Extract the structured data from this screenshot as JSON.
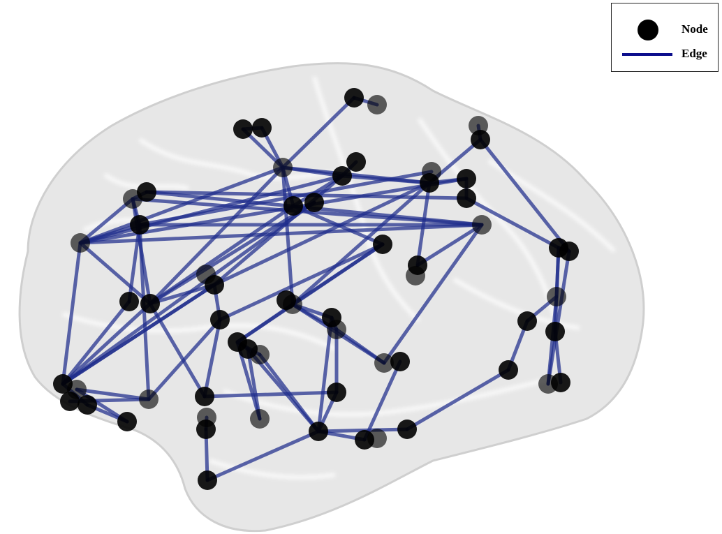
{
  "legend": {
    "node_label": "Node",
    "edge_label": "Edge"
  },
  "colors": {
    "node": "#000000",
    "edge": "#1f2d8c",
    "legend_edge": "#0c0e8c",
    "brain": "#dcdcdc"
  }
}
